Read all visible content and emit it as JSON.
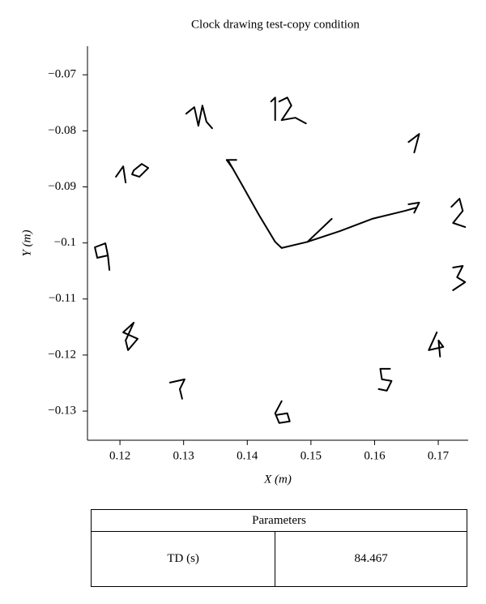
{
  "chart_data": {
    "type": "line",
    "title": "Clock drawing test-copy condition",
    "xlabel": "X (m)",
    "ylabel": "Y (m)",
    "color": "#000000",
    "xlim": [
      0.1149,
      0.1747
    ],
    "ylim": [
      -0.1352,
      -0.0649
    ],
    "xticks": [
      0.12,
      0.13,
      0.14,
      0.15,
      0.16,
      0.17
    ],
    "yticks": [
      {
        "value": -0.07,
        "label": "−0.07"
      },
      {
        "value": -0.08,
        "label": "−0.08"
      },
      {
        "value": -0.09,
        "label": "−0.09"
      },
      {
        "value": -0.1,
        "label": "−0.1"
      },
      {
        "value": -0.11,
        "label": "−0.11"
      },
      {
        "value": -0.12,
        "label": "−0.12"
      },
      {
        "value": -0.13,
        "label": "−0.13"
      }
    ],
    "strokes": [
      {
        "x": [
          0.13702,
          0.1393,
          0.14184,
          0.14438,
          0.1454,
          0.14946,
          0.15454,
          0.15962,
          0.1647,
          0.1666
        ],
        "y": [
          -0.08532,
          -0.0899,
          -0.095,
          -0.0998,
          -0.1009,
          -0.0998,
          -0.0979,
          -0.0957,
          -0.0943,
          -0.0937
        ]
      },
      {
        "x": [
          0.14946,
          0.15327
        ],
        "y": [
          -0.0998,
          -0.0957
        ]
      },
      {
        "x": [
          0.13829,
          0.13676,
          0.13778
        ],
        "y": [
          -0.0852,
          -0.0852,
          -0.0868
        ]
      },
      {
        "x": [
          0.16534,
          0.167,
          0.16623
        ],
        "y": [
          -0.0931,
          -0.0928,
          -0.0946
        ]
      },
      {
        "x": [
          0.14375,
          0.14438,
          0.14438
        ],
        "y": [
          -0.07477,
          -0.07405,
          -0.07809
        ]
      },
      {
        "x": [
          0.14502,
          0.14629,
          0.14692,
          0.1454,
          0.14756,
          0.14921
        ],
        "y": [
          -0.07477,
          -0.07405,
          -0.07549,
          -0.07809,
          -0.07766,
          -0.07867
        ]
      },
      {
        "x": [
          0.16534,
          0.167,
          0.16623
        ],
        "y": [
          -0.082,
          -0.08055,
          -0.08387
        ]
      },
      {
        "x": [
          0.13041,
          0.13168,
          0.13232,
          0.13295,
          0.13359,
          0.13448
        ],
        "y": [
          -0.07694,
          -0.07578,
          -0.0791,
          -0.07549,
          -0.07838,
          -0.07954
        ]
      },
      {
        "x": [
          0.11937,
          0.12051,
          0.12089
        ],
        "y": [
          -0.08821,
          -0.08633,
          -0.08922
        ]
      },
      {
        "x": [
          0.12216,
          0.12343,
          0.12445,
          0.12305,
          0.1219,
          0.12216
        ],
        "y": [
          -0.08705,
          -0.0859,
          -0.08662,
          -0.08821,
          -0.08777,
          -0.08705
        ]
      },
      {
        "x": [
          0.17207,
          0.17334,
          0.17385,
          0.17232,
          0.17423
        ],
        "y": [
          -0.09355,
          -0.09211,
          -0.09428,
          -0.09644,
          -0.09717
        ]
      },
      {
        "x": [
          0.11771,
          0.11606,
          0.11644,
          0.1181,
          0.11771,
          0.1181,
          0.11835
        ],
        "y": [
          -0.10006,
          -0.10078,
          -0.10266,
          -0.10222,
          -0.10006,
          -0.10222,
          -0.10482
        ]
      },
      {
        "x": [
          0.17232,
          0.17385,
          0.17296,
          0.17423,
          0.17232
        ],
        "y": [
          -0.10439,
          -0.1041,
          -0.10613,
          -0.10699,
          -0.10844
        ]
      },
      {
        "x": [
          0.12216,
          0.12051,
          0.12279,
          0.12127,
          0.12089,
          0.12216
        ],
        "y": [
          -0.11422,
          -0.11595,
          -0.11711,
          -0.11913,
          -0.1174,
          -0.11422
        ]
      },
      {
        "x": [
          0.16978,
          0.16851,
          0.1708,
          0.17004,
          0.17029
        ],
        "y": [
          -0.11595,
          -0.11913,
          -0.11855,
          -0.1174,
          -0.12029
        ]
      },
      {
        "x": [
          0.16242,
          0.16089,
          0.16115,
          0.16267,
          0.16191,
          0.16064
        ],
        "y": [
          -0.12245,
          -0.12245,
          -0.12433,
          -0.12462,
          -0.12636,
          -0.12607
        ]
      },
      {
        "x": [
          0.12787,
          0.13016,
          0.1294,
          0.12978
        ],
        "y": [
          -0.12491,
          -0.12433,
          -0.12607,
          -0.1278
        ]
      },
      {
        "x": [
          0.1454,
          0.14438,
          0.14502,
          0.14667,
          0.14629,
          0.14464
        ],
        "y": [
          -0.12823,
          -0.1304,
          -0.13214,
          -0.13185,
          -0.1304,
          -0.13069
        ]
      }
    ]
  },
  "table": {
    "header": "Parameters",
    "rows": [
      [
        "TD (s)",
        "84.467"
      ]
    ]
  }
}
